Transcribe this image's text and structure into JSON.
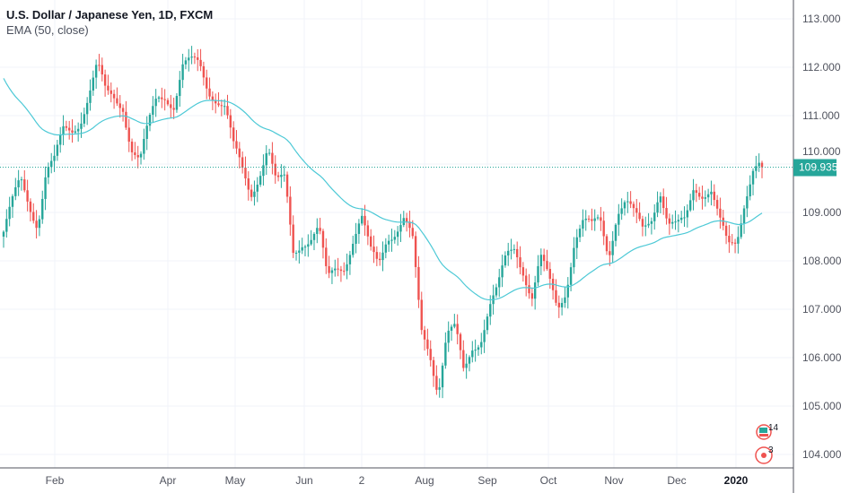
{
  "legend": {
    "title": "U.S. Dollar / Japanese Yen, 1D, FXCM",
    "indicator": "EMA (50, close)"
  },
  "colors": {
    "up": "#26a69a",
    "down": "#ef5350",
    "ema": "#4dc9d6",
    "grid": "#f0f3fa",
    "axis": "#50535e",
    "last_price": "#26a69a"
  },
  "chart_data": {
    "type": "candlestick",
    "title": "U.S. Dollar / Japanese Yen, 1D, FXCM",
    "ylim": [
      103.7,
      113.35
    ],
    "y_ticks": [
      "113.000",
      "112.000",
      "111.000",
      "110.000",
      "109.000",
      "108.000",
      "107.000",
      "106.000",
      "105.000",
      "104.000"
    ],
    "y_tick_values": [
      113,
      112,
      111,
      110,
      109,
      108,
      107,
      106,
      105,
      104
    ],
    "x_ticks": [
      "Feb",
      "Apr",
      "May",
      "Jun",
      "2",
      "Aug",
      "Sep",
      "Oct",
      "Nov",
      "Dec",
      "2020"
    ],
    "last_price": "109.935",
    "last_price_value": 109.935,
    "ema_period": 50,
    "ema_start": 111.9,
    "sampled_closes": [
      108.6,
      109.1,
      109.6,
      109.2,
      108.85,
      109.9,
      110.0,
      110.6,
      110.7,
      111.0,
      111.5,
      112.0,
      111.35,
      111.35,
      111.3,
      110.4,
      110.0,
      110.7,
      111.35,
      111.5,
      111.3,
      112.0,
      112.0,
      112.0,
      111.6,
      111.45,
      111.2,
      110.25,
      109.8,
      109.4,
      109.9,
      110.4,
      109.5,
      109.6,
      108.2,
      108.5,
      108.5,
      108.6,
      107.5,
      107.85,
      108.0,
      108.5,
      108.85,
      108.1,
      107.9,
      108.6,
      108.7,
      108.85,
      108.3,
      106.5,
      106.2,
      105.4,
      106.5,
      106.5,
      105.6,
      106.25,
      106.5,
      107.1,
      107.35,
      108.0,
      108.3,
      107.9,
      107.3,
      108.0,
      107.5,
      107.0,
      107.5,
      108.5,
      108.75,
      108.6,
      108.85,
      108.2,
      109.1,
      109.2,
      108.85,
      108.6,
      108.95,
      109.6,
      108.75,
      108.6,
      108.75,
      109.6,
      109.5,
      109.5,
      108.75,
      108.2,
      108.4,
      109.4,
      110.0,
      109.935
    ]
  },
  "events": {
    "earnings_count": "14",
    "dividends_count": "3"
  }
}
